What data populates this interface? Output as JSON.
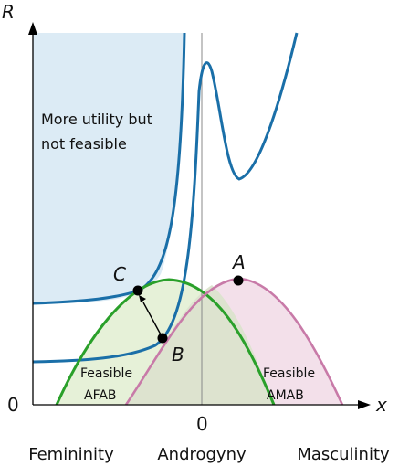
{
  "axes": {
    "y_label": "R",
    "x_label": "x",
    "origin_label": "0",
    "x_zero_label": "0"
  },
  "axis_categories": [
    "Femininity",
    "Androgyny",
    "Masculinity"
  ],
  "region_label": {
    "line1": "More utility but",
    "line2": "not feasible"
  },
  "feasible_labels": {
    "afab_line1": "Feasible",
    "afab_line2": "AFAB",
    "amab_line1": "Feasible",
    "amab_line2": "AMAB"
  },
  "points": {
    "A": "A",
    "B": "B",
    "C": "C"
  },
  "colors": {
    "background": "#ffffff",
    "infeasible_region_fill": "#dcebf5",
    "indifference_curve": "#1a6fa8",
    "afab_curve": "#2aa02a",
    "afab_fill": "#e6f1d8",
    "amab_curve": "#c87aa8",
    "amab_fill": "#f3e0ea",
    "overlap_fill": "#dde3cf",
    "axis": "#000000",
    "point": "#000000"
  }
}
